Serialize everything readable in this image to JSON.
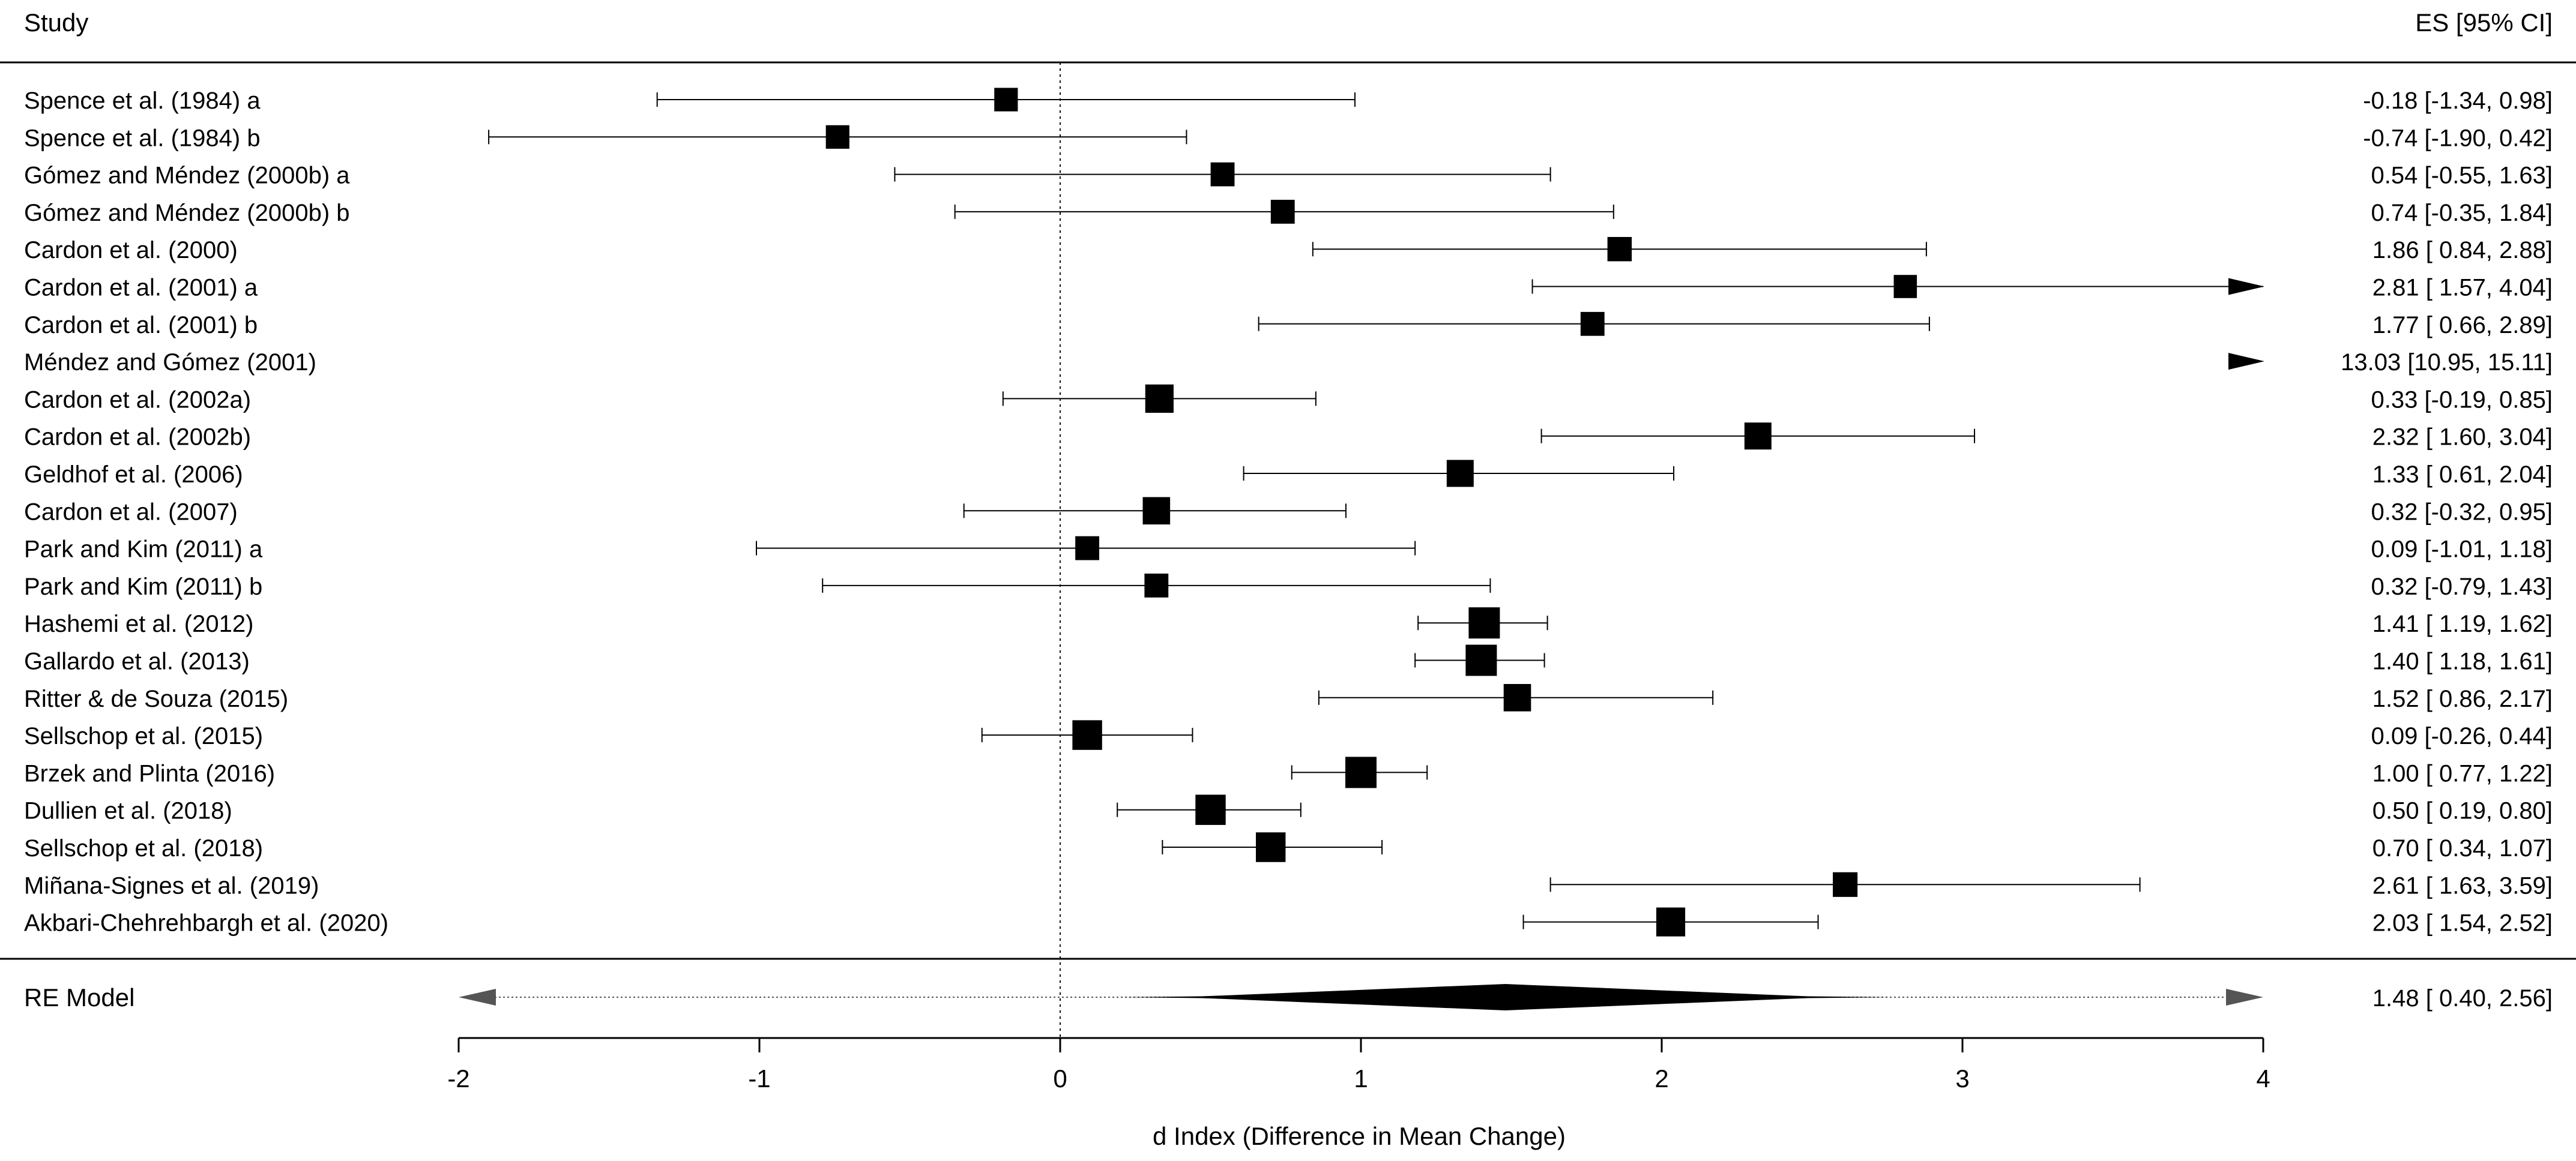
{
  "chart_data": {
    "type": "forest",
    "header": {
      "left": "Study",
      "right": "ES [95% CI]"
    },
    "xlabel": "d Index (Difference in Mean Change)",
    "xlim": [
      -2,
      4
    ],
    "xticks": [
      -2,
      -1,
      0,
      1,
      2,
      3,
      4
    ],
    "xtick_labels": [
      "-2",
      "-1",
      "0",
      "1",
      "2",
      "3",
      "4"
    ],
    "reference_line": 0,
    "studies": [
      {
        "label": "Spence et al. (1984) a",
        "es": -0.18,
        "lo": -1.34,
        "hi": 0.98,
        "weight": 0.6,
        "ci_text": "-0.18 [-1.34,  0.98]"
      },
      {
        "label": "Spence et al. (1984) b",
        "es": -0.74,
        "lo": -1.9,
        "hi": 0.42,
        "weight": 0.6,
        "ci_text": "-0.74 [-1.90,  0.42]"
      },
      {
        "label": "Gómez and Méndez (2000b) a",
        "es": 0.54,
        "lo": -0.55,
        "hi": 1.63,
        "weight": 0.62,
        "ci_text": "0.54 [-0.55,  1.63]"
      },
      {
        "label": "Gómez and Méndez (2000b) b",
        "es": 0.74,
        "lo": -0.35,
        "hi": 1.84,
        "weight": 0.62,
        "ci_text": "0.74 [-0.35,  1.84]"
      },
      {
        "label": "Cardon et al. (2000)",
        "es": 1.86,
        "lo": 0.84,
        "hi": 2.88,
        "weight": 0.64,
        "ci_text": "1.86 [ 0.84,  2.88]"
      },
      {
        "label": "Cardon et al. (2001) a",
        "es": 2.81,
        "lo": 1.57,
        "hi": 4.04,
        "weight": 0.58,
        "ci_text": "2.81 [ 1.57,  4.04]"
      },
      {
        "label": "Cardon et al. (2001) b",
        "es": 1.77,
        "lo": 0.66,
        "hi": 2.89,
        "weight": 0.62,
        "ci_text": "1.77 [ 0.66,  2.89]"
      },
      {
        "label": "Méndez and Gómez (2001)",
        "es": 13.03,
        "lo": 10.95,
        "hi": 15.11,
        "weight": 0.5,
        "ci_text": "13.03 [10.95, 15.11]"
      },
      {
        "label": "Cardon et al. (2002a)",
        "es": 0.33,
        "lo": -0.19,
        "hi": 0.85,
        "weight": 0.85,
        "ci_text": "0.33 [-0.19,  0.85]"
      },
      {
        "label": "Cardon et al. (2002b)",
        "es": 2.32,
        "lo": 1.6,
        "hi": 3.04,
        "weight": 0.78,
        "ci_text": "2.32 [ 1.60,  3.04]"
      },
      {
        "label": "Geldhof et al. (2006)",
        "es": 1.33,
        "lo": 0.61,
        "hi": 2.04,
        "weight": 0.78,
        "ci_text": "1.33 [ 0.61,  2.04]"
      },
      {
        "label": "Cardon et al. (2007)",
        "es": 0.32,
        "lo": -0.32,
        "hi": 0.95,
        "weight": 0.8,
        "ci_text": "0.32 [-0.32,  0.95]"
      },
      {
        "label": "Park and Kim (2011) a",
        "es": 0.09,
        "lo": -1.01,
        "hi": 1.18,
        "weight": 0.62,
        "ci_text": "0.09 [-1.01,  1.18]"
      },
      {
        "label": "Park and Kim (2011) b",
        "es": 0.32,
        "lo": -0.79,
        "hi": 1.43,
        "weight": 0.62,
        "ci_text": "0.32 [-0.79,  1.43]"
      },
      {
        "label": "Hashemi et al. (2012)",
        "es": 1.41,
        "lo": 1.19,
        "hi": 1.62,
        "weight": 1.0,
        "ci_text": "1.41 [ 1.19,  1.62]"
      },
      {
        "label": "Gallardo et al. (2013)",
        "es": 1.4,
        "lo": 1.18,
        "hi": 1.61,
        "weight": 1.0,
        "ci_text": "1.40 [ 1.18,  1.61]"
      },
      {
        "label": "Ritter & de Souza (2015)",
        "es": 1.52,
        "lo": 0.86,
        "hi": 2.17,
        "weight": 0.8,
        "ci_text": "1.52 [ 0.86,  2.17]"
      },
      {
        "label": "Sellschop et al. (2015)",
        "es": 0.09,
        "lo": -0.26,
        "hi": 0.44,
        "weight": 0.92,
        "ci_text": "0.09 [-0.26,  0.44]"
      },
      {
        "label": "Brzek and Plinta (2016)",
        "es": 1.0,
        "lo": 0.77,
        "hi": 1.22,
        "weight": 1.0,
        "ci_text": "1.00 [ 0.77,  1.22]"
      },
      {
        "label": "Dullien et al. (2018)",
        "es": 0.5,
        "lo": 0.19,
        "hi": 0.8,
        "weight": 0.95,
        "ci_text": "0.50 [ 0.19,  0.80]"
      },
      {
        "label": "Sellschop et al. (2018)",
        "es": 0.7,
        "lo": 0.34,
        "hi": 1.07,
        "weight": 0.92,
        "ci_text": "0.70 [ 0.34,  1.07]"
      },
      {
        "label": "Miñana-Signes et al. (2019)",
        "es": 2.61,
        "lo": 1.63,
        "hi": 3.59,
        "weight": 0.66,
        "ci_text": "2.61 [ 1.63,  3.59]"
      },
      {
        "label": "Akbari-Chehrehbargh et al. (2020)",
        "es": 2.03,
        "lo": 1.54,
        "hi": 2.52,
        "weight": 0.88,
        "ci_text": "2.03 [ 1.54,  2.52]"
      }
    ],
    "summary": {
      "label": "RE Model",
      "es": 1.48,
      "lo": 0.4,
      "hi": 2.56,
      "pi_lo": -2,
      "pi_hi": 4,
      "ci_text": "1.48 [ 0.40,  2.56]"
    }
  }
}
